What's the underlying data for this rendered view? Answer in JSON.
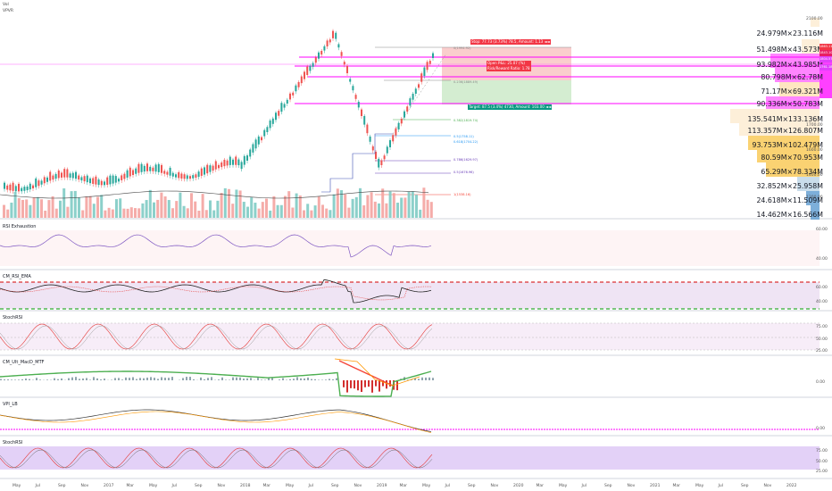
{
  "header": {
    "symbol_line1": "Vol",
    "symbol_line2": "VPVR"
  },
  "panes": {
    "rsi_title": "RSI Exhaustion",
    "cm_title": "CM_RSI_EMA",
    "stoch_title": "StochRSI",
    "macd_title": "CM_Ult_MacD_MTF",
    "vpi_title": "VPI_LB",
    "stoch2_title": "StochRSI"
  },
  "price_axis": {
    "main": [
      "2100.00",
      "1700.00",
      "1600.00",
      "1500.00",
      "1400.00",
      "1300.00"
    ],
    "rsi": [
      "60.00",
      "40.00"
    ],
    "cm": [
      "60.00",
      "40.00"
    ],
    "stoch": [
      "75.00",
      "50.00",
      "25.00"
    ],
    "macd": [
      "0.00"
    ],
    "vpi": [
      "0.00"
    ],
    "stoch2": [
      "75.00",
      "50.00",
      "25.00"
    ]
  },
  "volume_profile": [
    {
      "label": "24.979M×23.116M",
      "color": "#131722"
    },
    {
      "label": "51.498M×43.573M",
      "color": "#131722"
    },
    {
      "label": "93.982M×43.985M",
      "color": "#131722"
    },
    {
      "label": "80.798M×62.78M",
      "color": "#131722"
    },
    {
      "label": "71.17M×69.321M",
      "color": "#131722"
    },
    {
      "label": "90.336M×50.783M",
      "color": "#131722"
    },
    {
      "label": "135.541M×133.136M",
      "color": "#131722"
    },
    {
      "label": "113.357M×126.807M",
      "color": "#131722"
    },
    {
      "label": "93.753M×102.479M",
      "color": "#131722"
    },
    {
      "label": "80.59M×70.953M",
      "color": "#131722"
    },
    {
      "label": "65.29M×78.334M",
      "color": "#131722"
    },
    {
      "label": "32.852M×25.958M",
      "color": "#131722"
    },
    {
      "label": "24.618M×11.509M",
      "color": "#131722"
    },
    {
      "label": "14.462M×16.566M",
      "color": "#131722"
    }
  ],
  "trade_tags": {
    "stop": "Stop: 77.73 (3.73%) 78.5, Amount: 1.13 ◄◄",
    "entry": "Open P&L: 25.07 (%)\nRisk/Reward Ratio: 1.78",
    "target": "Target: 87.5 (3.4%) 4730, Amount: 103.00 ◄◄"
  },
  "fib_labels": [
    "0(1994.92)",
    "0.236(1889.49)",
    "0.382(1819.74)",
    "0.5(1758.11)",
    "0.618(1704.22)",
    "0.786(1629.97)",
    "1(1538.16)",
    "0.5(1676.96)"
  ],
  "x_axis": [
    "May",
    "Jul",
    "Sep",
    "Nov",
    "2017",
    "Mar",
    "May",
    "Jul",
    "Sep",
    "Nov",
    "2018",
    "Mar",
    "May",
    "Jul",
    "Sep",
    "Nov",
    "2019",
    "Mar",
    "May",
    "Jul",
    "Sep",
    "Nov",
    "2020",
    "Mar",
    "May",
    "Jul",
    "Sep",
    "Nov",
    "2021",
    "Mar",
    "May",
    "Jul",
    "Sep",
    "Nov",
    "2022"
  ],
  "right_tags": [
    {
      "text": "1863.11",
      "color": "#f23645"
    },
    {
      "text": "1843.10",
      "color": "#e91e63"
    },
    {
      "text": "1804.57",
      "color": "#e040fb"
    },
    {
      "text": "1761.18",
      "color": "#e040fb"
    }
  ],
  "colors": {
    "accent_magenta": "#ff00ff",
    "bull": "#26a69a",
    "bear": "#ef5350",
    "stop_zone": "#f8b9b8",
    "target_zone": "#c9e9c5"
  }
}
